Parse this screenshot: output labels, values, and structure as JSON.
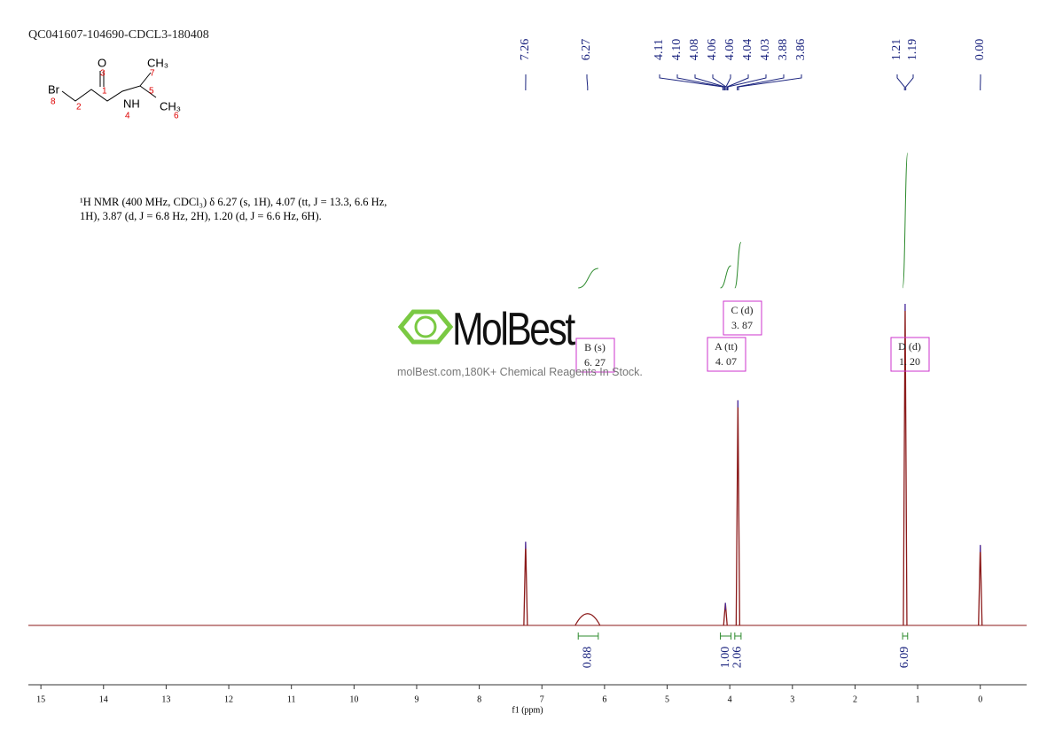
{
  "chart_data": {
    "type": "spectrum",
    "title": "QC041607-104690-CDCL3-180408",
    "xlabel": "f1 (ppm)",
    "xlim": [
      15.2,
      -0.74
    ],
    "xticks": [
      15,
      14,
      13,
      12,
      11,
      10,
      9,
      8,
      7,
      6,
      5,
      4,
      3,
      2,
      1,
      0
    ],
    "ylim": [
      0,
      1
    ],
    "color": "#8b1a1a",
    "peaks": {
      "x": [
        7.26,
        6.27,
        4.07,
        3.87,
        1.2,
        0.0
      ],
      "values": [
        0.26,
        0.04,
        0.07,
        0.7,
        1.0,
        0.25
      ]
    },
    "peak_labels": [
      "7.26",
      "6.27",
      "4.11",
      "4.10",
      "4.08",
      "4.06",
      "4.06",
      "4.04",
      "4.03",
      "3.88",
      "3.86",
      "1.21",
      "1.19",
      "0.00"
    ],
    "integrals": {
      "values": [
        0.88,
        1.0,
        2.06,
        6.09
      ],
      "value_labels": [
        "0.88",
        "1.00",
        "2.06",
        "6.09"
      ],
      "ranges": [
        [
          6.42,
          6.1
        ],
        [
          4.15,
          3.98
        ],
        [
          3.92,
          3.82
        ],
        [
          1.24,
          1.16
        ]
      ],
      "color": "#2e8b2e"
    },
    "multiplets": [
      {
        "name": "B (s)",
        "shift": "6. 27"
      },
      {
        "name": "A (tt)",
        "shift": "4. 07"
      },
      {
        "name": "C (d)",
        "shift": "3. 87"
      },
      {
        "name": "D (d)",
        "shift": "1. 20"
      }
    ],
    "description": "¹H NMR (400 MHz, CDCl₃) δ 6.27 (s, 1H), 4.07 (tt, J = 13.3, 6.6 Hz, 1H), 3.87 (d, J = 6.8 Hz, 2H), 1.20 (d, J = 6.6 Hz, 6H).",
    "molecule": {
      "atoms": [
        "Br",
        "O",
        "NH",
        "CH₃",
        "CH₃"
      ],
      "numbers": [
        "8",
        "2",
        "3",
        "1",
        "4",
        "7",
        "5",
        "6"
      ]
    },
    "watermark": {
      "logo": "MolBest",
      "text": "molBest.com,180K+ Chemical Reagents In Stock."
    }
  }
}
